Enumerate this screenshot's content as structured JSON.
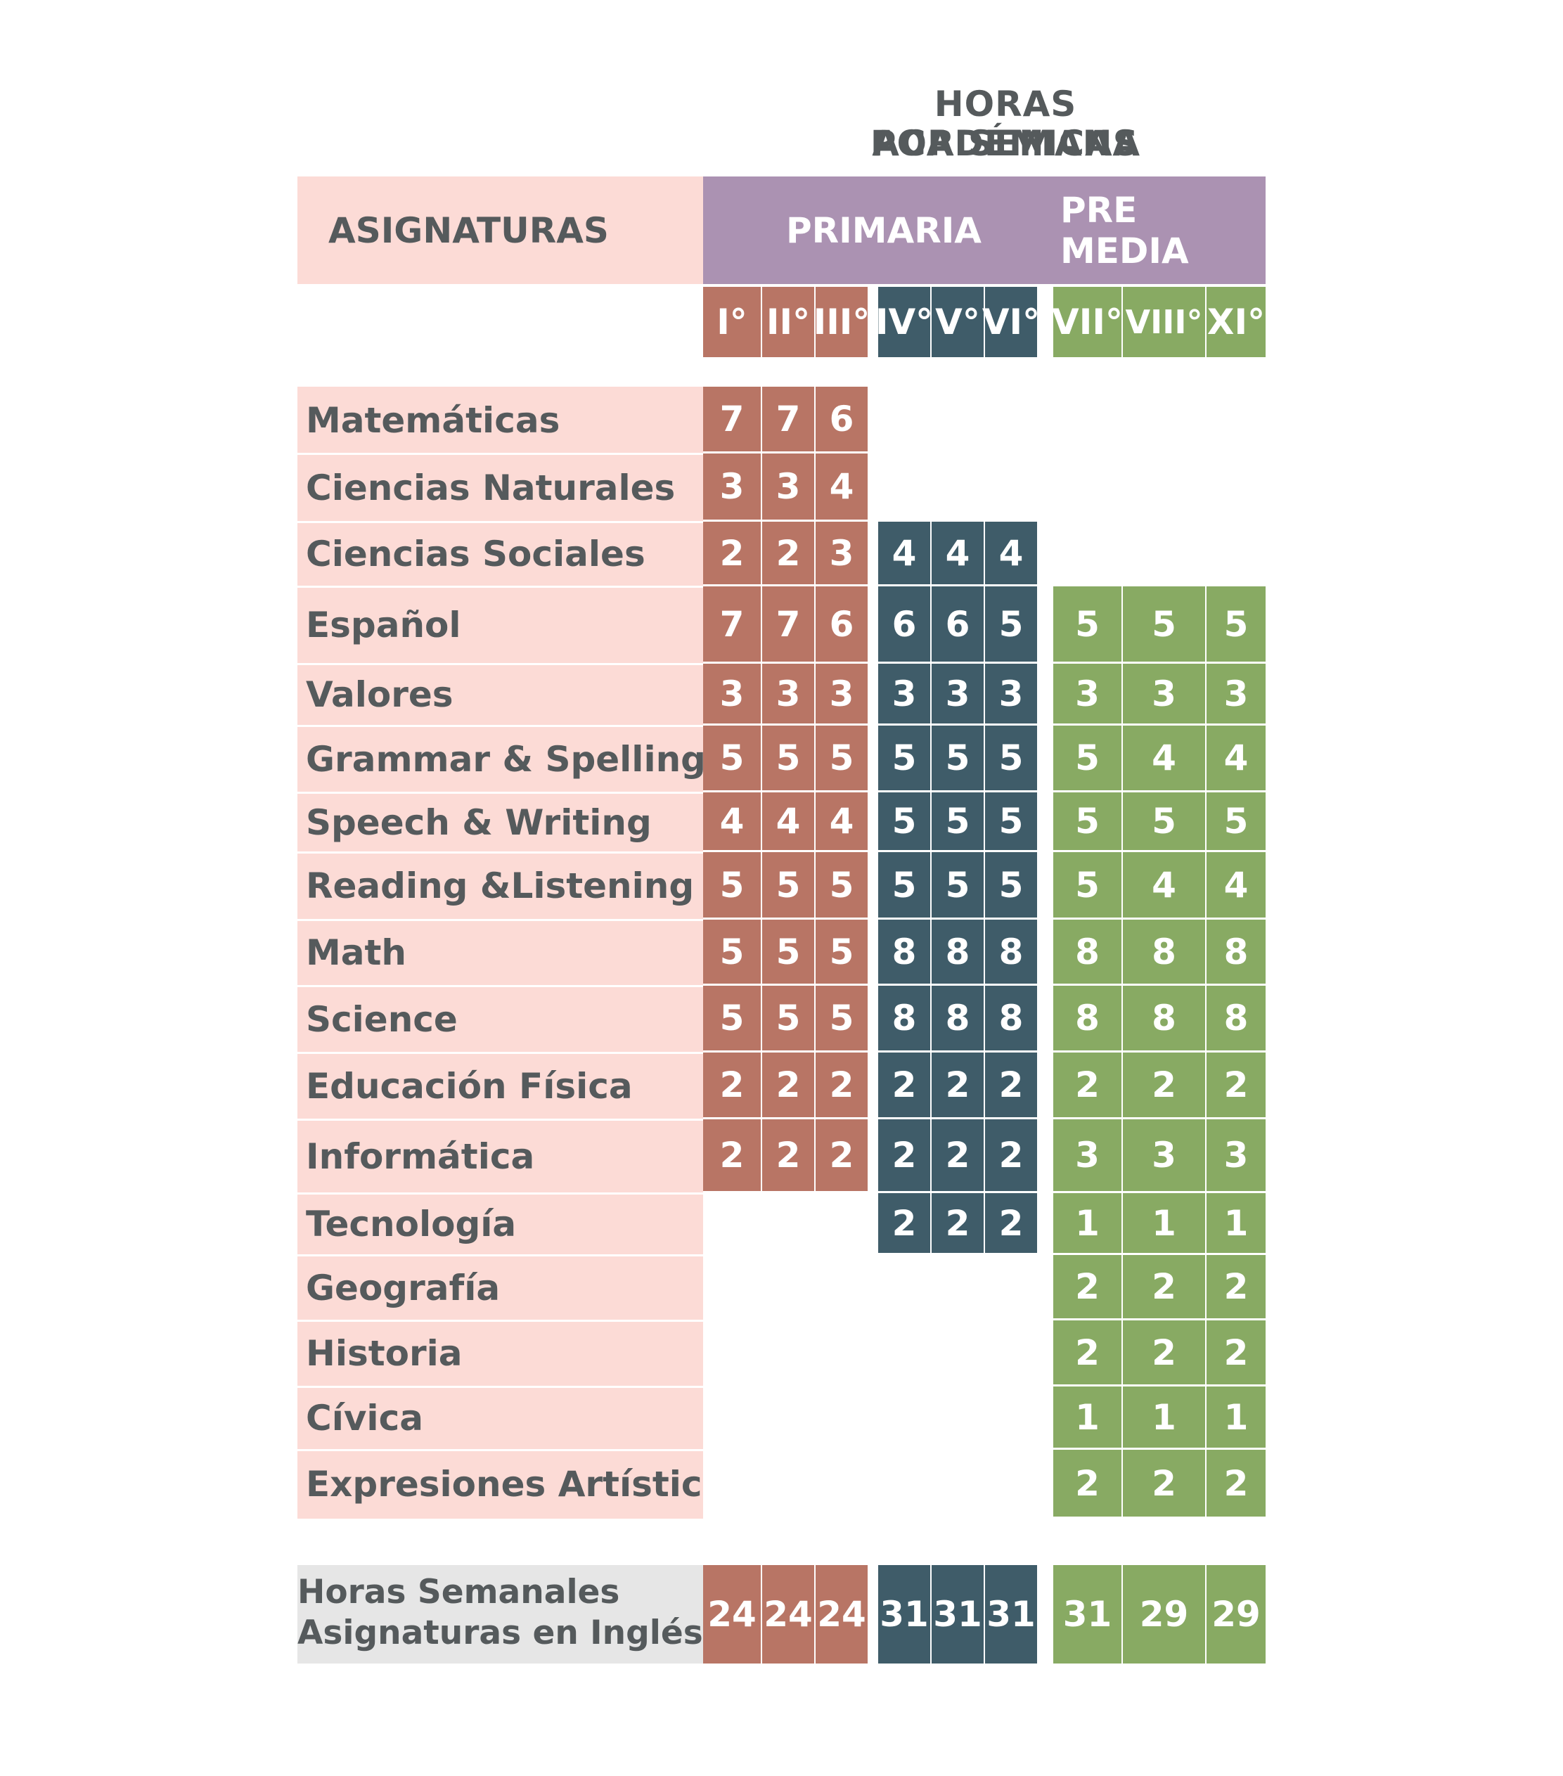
{
  "title_lines": [
    "HORAS ACADÉMICAS",
    "POR SEMANA"
  ],
  "header": {
    "subjects_label": "ASIGNATURAS",
    "primaria_label": "PRIMARIA",
    "premedia_label": "PRE MEDIA"
  },
  "grades": [
    "I°",
    "II°",
    "III°",
    "IV°",
    "V°",
    "VI°",
    "VII°",
    "VIII°",
    "XI°"
  ],
  "colors": {
    "primaria_low": "#b87565",
    "primaria_high": "#3f5c69",
    "premedia": "#88aa63",
    "header_band": "#ab92b2",
    "subject_bg": "#fcdbd6",
    "total_bg": "#e6e6e6",
    "text_dark": "#555a5c"
  },
  "subjects": [
    {
      "name": "Matemáticas",
      "hours": [
        7,
        7,
        6,
        null,
        null,
        null,
        null,
        null,
        null
      ]
    },
    {
      "name": "Ciencias Naturales",
      "hours": [
        3,
        3,
        4,
        null,
        null,
        null,
        null,
        null,
        null
      ]
    },
    {
      "name": "Ciencias Sociales",
      "hours": [
        2,
        2,
        3,
        4,
        4,
        4,
        null,
        null,
        null
      ]
    },
    {
      "name": "Español",
      "hours": [
        7,
        7,
        6,
        6,
        6,
        5,
        5,
        5,
        5
      ]
    },
    {
      "name": "Valores",
      "hours": [
        3,
        3,
        3,
        3,
        3,
        3,
        3,
        3,
        3
      ]
    },
    {
      "name": "Grammar & Spelling",
      "hours": [
        5,
        5,
        5,
        5,
        5,
        5,
        5,
        4,
        4
      ]
    },
    {
      "name": "Speech & Writing",
      "hours": [
        4,
        4,
        4,
        5,
        5,
        5,
        5,
        5,
        5
      ]
    },
    {
      "name": "Reading &Listening",
      "hours": [
        5,
        5,
        5,
        5,
        5,
        5,
        5,
        4,
        4
      ]
    },
    {
      "name": "Math",
      "hours": [
        5,
        5,
        5,
        8,
        8,
        8,
        8,
        8,
        8
      ]
    },
    {
      "name": "Science",
      "hours": [
        5,
        5,
        5,
        8,
        8,
        8,
        8,
        8,
        8
      ]
    },
    {
      "name": "Educación Física",
      "hours": [
        2,
        2,
        2,
        2,
        2,
        2,
        2,
        2,
        2
      ]
    },
    {
      "name": "Informática",
      "hours": [
        2,
        2,
        2,
        2,
        2,
        2,
        3,
        3,
        3
      ]
    },
    {
      "name": "Tecnología",
      "hours": [
        null,
        null,
        null,
        2,
        2,
        2,
        1,
        1,
        1
      ]
    },
    {
      "name": "Geografía",
      "hours": [
        null,
        null,
        null,
        null,
        null,
        null,
        2,
        2,
        2
      ]
    },
    {
      "name": "Historia",
      "hours": [
        null,
        null,
        null,
        null,
        null,
        null,
        2,
        2,
        2
      ]
    },
    {
      "name": "Cívica",
      "hours": [
        null,
        null,
        null,
        null,
        null,
        null,
        1,
        1,
        1
      ]
    },
    {
      "name": "Expresiones Artísticas",
      "hours": [
        null,
        null,
        null,
        null,
        null,
        null,
        2,
        2,
        2
      ]
    }
  ],
  "totals": {
    "label_lines": [
      "Horas Semanales",
      "Asignaturas en Inglés"
    ],
    "values": [
      24,
      24,
      24,
      31,
      31,
      31,
      31,
      29,
      29
    ]
  }
}
